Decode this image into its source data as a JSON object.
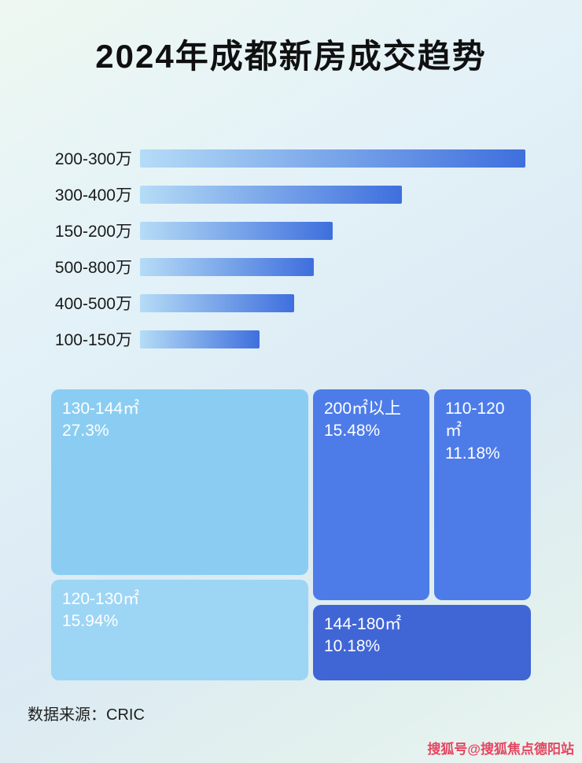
{
  "page": {
    "title": "2024年成都新房成交趋势",
    "source_label": "数据来源：CRIC",
    "watermark": "搜狐号@搜狐焦点德阳站"
  },
  "colors": {
    "bar_start": "#b5dcf6",
    "bar_end": "#3e6fdd",
    "tm_a": "#8bcdf2",
    "tm_b": "#4d7ce9",
    "tm_c": "#4d7ce9",
    "tm_d": "#9dd5f5",
    "tm_e": "#4066d6",
    "watermark": "#e54560"
  },
  "chart_data": [
    {
      "type": "bar",
      "title": "2024年成都新房成交趋势",
      "orientation": "horizontal",
      "categories": [
        "200-300万",
        "300-400万",
        "150-200万",
        "500-800万",
        "400-500万",
        "100-150万"
      ],
      "values": [
        100,
        68,
        50,
        45,
        40,
        31
      ],
      "value_scale": "relative bar length as % of longest bar (no numeric axis shown)",
      "xlabel": "",
      "ylabel": "",
      "grid": false,
      "legend": false
    },
    {
      "type": "treemap",
      "items": [
        {
          "label": "130-144㎡",
          "percent": "27.3%",
          "value": 27.3
        },
        {
          "label": "200㎡以上",
          "percent": "15.48%",
          "value": 15.48
        },
        {
          "label": "110-120㎡",
          "percent": "11.18%",
          "value": 11.18
        },
        {
          "label": "120-130㎡",
          "percent": "15.94%",
          "value": 15.94
        },
        {
          "label": "144-180㎡",
          "percent": "10.18%",
          "value": 10.18
        }
      ]
    }
  ]
}
